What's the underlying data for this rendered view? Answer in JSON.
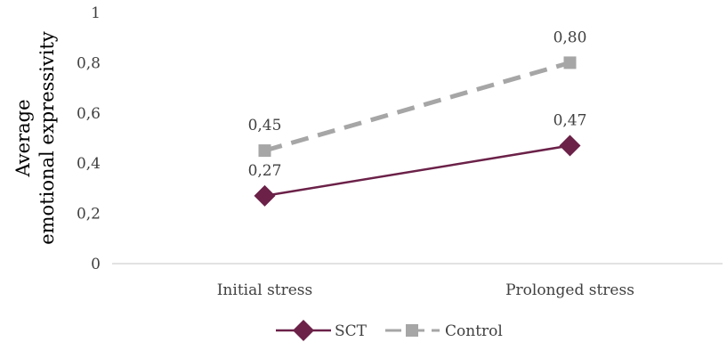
{
  "chart_data": {
    "type": "line",
    "categories": [
      "Initial stress",
      "Prolonged stress"
    ],
    "series": [
      {
        "name": "SCT",
        "values": [
          0.27,
          0.47
        ],
        "value_labels": [
          "0,27",
          "0,47"
        ],
        "color": "#6b2148",
        "marker": "diamond",
        "line_style": "solid"
      },
      {
        "name": "Control",
        "values": [
          0.45,
          0.8
        ],
        "value_labels": [
          "0,45",
          "0,80"
        ],
        "color": "#a6a6a6",
        "marker": "square",
        "line_style": "dashed"
      }
    ],
    "ylabel_lines": [
      "Average",
      "emotional expressivity"
    ],
    "xlabel": "",
    "ylim": [
      0,
      1
    ],
    "yticks": [
      0,
      0.2,
      0.4,
      0.6,
      0.8,
      1
    ],
    "ytick_labels": [
      "0",
      "0,2",
      "0,4",
      "0,6",
      "0,8",
      "1"
    ],
    "grid": false,
    "legend_position": "bottom-center"
  }
}
